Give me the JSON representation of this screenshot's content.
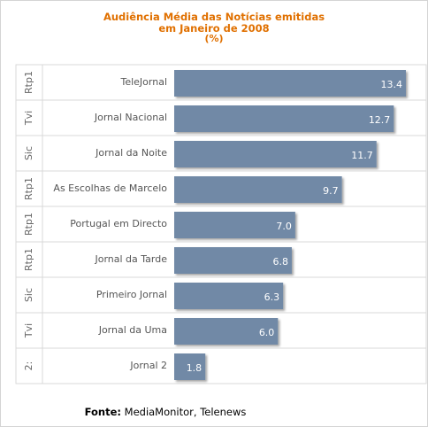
{
  "chart_data": {
    "type": "bar",
    "orientation": "horizontal",
    "title_lines": [
      "Audiência Média das Notícias emitidas",
      "em Janeiro de 2008",
      "(%)"
    ],
    "categories": [
      "TeleJornal",
      "Jornal Nacional",
      "Jornal da Noite",
      "As Escolhas de Marcelo",
      "Portugal em Directo",
      "Jornal da Tarde",
      "Primeiro Jornal",
      "Jornal da Uma",
      "Jornal 2"
    ],
    "channels": [
      "Rtp1",
      "Tvi",
      "Sic",
      "Rtp1",
      "Rtp1",
      "Rtp1",
      "Sic",
      "Tvi",
      "2:"
    ],
    "values": [
      13.4,
      12.7,
      11.7,
      9.7,
      7.0,
      6.8,
      6.3,
      6.0,
      1.8
    ],
    "value_labels": [
      "13.4",
      "12.7",
      "11.7",
      "9.7",
      "7.0",
      "6.8",
      "6.3",
      "6.0",
      "1.8"
    ],
    "xlim": [
      0,
      14
    ],
    "grid": false,
    "legend": "none",
    "bar_color": "#7189a6"
  },
  "footer": {
    "source_label": "Fonte:",
    "source_value": "MediaMonitor, Telenews"
  }
}
